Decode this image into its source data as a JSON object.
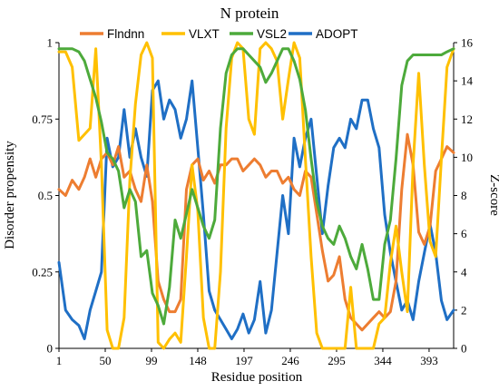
{
  "chart_data": {
    "type": "line",
    "title": "N protein",
    "xlabel": "Residue position",
    "ylabel": "Disorder propensity",
    "y2label": "Z-score",
    "xlim": [
      1,
      419
    ],
    "ylim": [
      0,
      1
    ],
    "y2lim": [
      0,
      16
    ],
    "x_ticks": [
      1,
      50,
      99,
      148,
      197,
      246,
      295,
      344,
      393
    ],
    "y_ticks": [
      0,
      0.25,
      0.5,
      0.75,
      1
    ],
    "y_tick_labels": [
      "0",
      "0.25",
      "0.5",
      "0.75",
      "1"
    ],
    "y2_ticks": [
      0,
      2,
      4,
      6,
      8,
      10,
      12,
      14,
      16
    ],
    "grid": false,
    "legend_position": "top",
    "series": [
      {
        "name": "Flndnn",
        "color": "#ED7D31",
        "axis": "left",
        "x": [
          1,
          8,
          15,
          22,
          28,
          34,
          40,
          46,
          52,
          58,
          64,
          70,
          76,
          82,
          88,
          94,
          100,
          106,
          112,
          118,
          124,
          130,
          136,
          142,
          148,
          154,
          160,
          166,
          172,
          178,
          184,
          190,
          196,
          202,
          208,
          214,
          220,
          226,
          232,
          238,
          244,
          250,
          256,
          262,
          268,
          274,
          280,
          286,
          292,
          298,
          304,
          310,
          316,
          322,
          328,
          334,
          340,
          346,
          352,
          358,
          364,
          370,
          376,
          382,
          388,
          394,
          400,
          406,
          412,
          419
        ],
        "values": [
          0.52,
          0.5,
          0.55,
          0.52,
          0.56,
          0.62,
          0.56,
          0.62,
          0.64,
          0.6,
          0.66,
          0.56,
          0.58,
          0.52,
          0.48,
          0.6,
          0.48,
          0.22,
          0.16,
          0.12,
          0.12,
          0.16,
          0.52,
          0.6,
          0.62,
          0.55,
          0.58,
          0.54,
          0.6,
          0.6,
          0.62,
          0.62,
          0.58,
          0.6,
          0.62,
          0.6,
          0.56,
          0.58,
          0.58,
          0.54,
          0.56,
          0.52,
          0.5,
          0.58,
          0.56,
          0.44,
          0.32,
          0.22,
          0.24,
          0.3,
          0.16,
          0.1,
          0.08,
          0.06,
          0.08,
          0.1,
          0.12,
          0.1,
          0.12,
          0.22,
          0.52,
          0.7,
          0.6,
          0.38,
          0.34,
          0.4,
          0.58,
          0.62,
          0.66,
          0.64
        ]
      },
      {
        "name": "VLXT",
        "color": "#FFC000",
        "axis": "left",
        "x": [
          1,
          8,
          15,
          22,
          28,
          34,
          40,
          46,
          52,
          58,
          64,
          70,
          76,
          82,
          88,
          94,
          100,
          106,
          112,
          118,
          124,
          130,
          136,
          142,
          148,
          154,
          160,
          166,
          172,
          178,
          184,
          190,
          196,
          202,
          208,
          214,
          220,
          226,
          232,
          238,
          244,
          250,
          256,
          262,
          268,
          274,
          280,
          286,
          292,
          298,
          304,
          310,
          316,
          322,
          328,
          334,
          340,
          346,
          352,
          358,
          364,
          370,
          376,
          382,
          388,
          394,
          400,
          406,
          412,
          419
        ],
        "values": [
          0.97,
          0.97,
          0.92,
          0.68,
          0.7,
          0.72,
          0.98,
          0.6,
          0.06,
          0.0,
          0.0,
          0.1,
          0.55,
          0.8,
          0.96,
          1.0,
          0.95,
          0.02,
          0.0,
          0.03,
          0.05,
          0.02,
          0.3,
          0.6,
          0.45,
          0.1,
          0.0,
          0.0,
          0.25,
          0.72,
          0.95,
          1.0,
          0.98,
          0.75,
          0.7,
          0.98,
          1.0,
          0.98,
          0.94,
          0.75,
          0.88,
          1.0,
          0.95,
          0.62,
          0.3,
          0.05,
          0.0,
          0.0,
          0.0,
          0.0,
          0.0,
          0.2,
          0.0,
          0.0,
          0.0,
          0.0,
          0.08,
          0.1,
          0.28,
          0.4,
          0.25,
          0.12,
          0.6,
          0.9,
          0.6,
          0.35,
          0.3,
          0.62,
          0.92,
          0.98
        ]
      },
      {
        "name": "VSL2",
        "color": "#4DAA3B",
        "axis": "left",
        "x": [
          1,
          8,
          15,
          22,
          28,
          34,
          40,
          46,
          52,
          58,
          64,
          70,
          76,
          82,
          88,
          94,
          100,
          106,
          112,
          118,
          124,
          130,
          136,
          142,
          148,
          154,
          160,
          166,
          172,
          178,
          184,
          190,
          196,
          202,
          208,
          214,
          220,
          226,
          232,
          238,
          244,
          250,
          256,
          262,
          268,
          274,
          280,
          286,
          292,
          298,
          304,
          310,
          316,
          322,
          328,
          334,
          340,
          346,
          352,
          358,
          364,
          370,
          376,
          382,
          388,
          394,
          400,
          406,
          412,
          419
        ],
        "values": [
          0.98,
          0.98,
          0.98,
          0.97,
          0.94,
          0.88,
          0.82,
          0.74,
          0.64,
          0.62,
          0.58,
          0.46,
          0.52,
          0.48,
          0.3,
          0.32,
          0.18,
          0.14,
          0.08,
          0.2,
          0.42,
          0.36,
          0.44,
          0.52,
          0.46,
          0.4,
          0.36,
          0.42,
          0.72,
          0.9,
          0.96,
          0.98,
          0.98,
          0.96,
          0.94,
          0.92,
          0.87,
          0.9,
          0.94,
          0.98,
          0.98,
          0.94,
          0.88,
          0.78,
          0.62,
          0.48,
          0.4,
          0.36,
          0.34,
          0.4,
          0.36,
          0.3,
          0.26,
          0.34,
          0.26,
          0.16,
          0.16,
          0.34,
          0.42,
          0.62,
          0.86,
          0.94,
          0.96,
          0.96,
          0.96,
          0.96,
          0.96,
          0.96,
          0.97,
          0.98
        ]
      },
      {
        "name": "ADOPT",
        "color": "#1F6FC5",
        "axis": "right",
        "x": [
          1,
          8,
          15,
          22,
          28,
          34,
          40,
          46,
          52,
          58,
          64,
          70,
          76,
          82,
          88,
          94,
          100,
          106,
          112,
          118,
          124,
          130,
          136,
          142,
          148,
          154,
          160,
          166,
          172,
          178,
          184,
          190,
          196,
          202,
          208,
          214,
          220,
          226,
          232,
          238,
          244,
          250,
          256,
          262,
          268,
          274,
          280,
          286,
          292,
          298,
          304,
          310,
          316,
          322,
          328,
          334,
          340,
          346,
          352,
          358,
          364,
          370,
          376,
          382,
          388,
          394,
          400,
          406,
          412,
          419
        ],
        "values": [
          4.5,
          2.0,
          1.5,
          1.2,
          0.5,
          2.0,
          3.0,
          4.0,
          11.0,
          9.5,
          10.0,
          12.5,
          10.0,
          11.5,
          10.0,
          9.0,
          13.5,
          14.0,
          12.0,
          13.0,
          12.5,
          11.0,
          12.0,
          14.0,
          10.5,
          7.0,
          3.0,
          2.0,
          1.5,
          1.0,
          0.5,
          1.0,
          1.8,
          0.8,
          1.5,
          3.5,
          0.8,
          2.0,
          5.0,
          8.0,
          6.0,
          11.0,
          9.5,
          11.0,
          12.0,
          9.0,
          6.0,
          8.5,
          10.5,
          11.0,
          10.5,
          12.0,
          11.5,
          13.0,
          13.0,
          11.5,
          10.5,
          7.0,
          5.0,
          3.5,
          2.0,
          2.5,
          1.5,
          3.5,
          5.0,
          6.5,
          5.0,
          2.5,
          1.5,
          2.0
        ]
      }
    ]
  }
}
